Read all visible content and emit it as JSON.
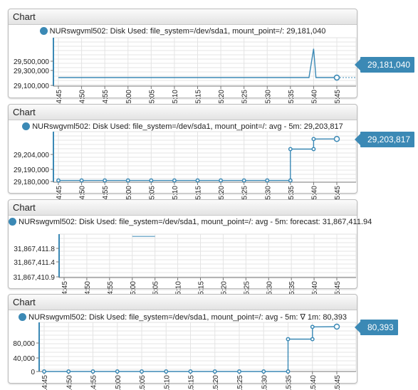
{
  "widgets": [
    {
      "title": "Chart",
      "legend": "NURswgvml502: Disk Used: file_system=/dev/sda1, mount_point=/: 29,181,040",
      "badge": "29,181,040",
      "y_ticks": [
        "29,500,000",
        "29,300,000",
        "29,100,000"
      ],
      "x_ticks": [
        "14:45",
        "14:50",
        "14:55",
        "15:00",
        "15:05",
        "15:10",
        "15:15",
        "15:20",
        "15:25",
        "15:30",
        "15:35",
        "15:40",
        "15:45"
      ]
    },
    {
      "title": "Chart",
      "legend": "NURswgvml502: Disk Used: file_system=/dev/sda1, mount_point=/: avg - 5m: 29,203,817",
      "badge": "29,203,817",
      "y_ticks": [
        "29,204,000",
        "29,190,000",
        "29,180,000"
      ],
      "x_ticks": [
        "14:45",
        "14:50",
        "14:55",
        "15:00",
        "15:05",
        "15:10",
        "15:15",
        "15:20",
        "15:25",
        "15:30",
        "15:35",
        "15:40",
        "15:45"
      ]
    },
    {
      "title": "Chart",
      "legend": "NURswgvml502: Disk Used: file_system=/dev/sda1, mount_point=/: avg - 5m: forecast: 31,867,411.94",
      "y_ticks": [
        "31,867,411.8",
        "31,867,411.4",
        "31,867,410.9"
      ],
      "x_ticks": [
        "14:45",
        "14:50",
        "14:55",
        "15:00",
        "15:05",
        "15:10",
        "15:15",
        "15:20",
        "15:25",
        "15:30",
        "15:35",
        "15:40",
        "15:45"
      ]
    },
    {
      "title": "Chart",
      "legend": "NURswgvml502: Disk Used: file_system=/dev/sda1, mount_point=/: avg - 5m: ∇ 1m: 80,393",
      "badge": "80,393",
      "y_ticks": [
        "80,000",
        "40,000",
        "0"
      ],
      "x_ticks": [
        "14:45",
        "14:50",
        "14:55",
        "15:00",
        "15:05",
        "15:10",
        "15:15",
        "15:20",
        "15:25",
        "15:30",
        "15:35",
        "15:40",
        "15:45"
      ]
    }
  ],
  "colors": {
    "series": "#3b89b5",
    "grid": "#e4e4e4",
    "axis": "#3b89b5",
    "forecast": "#6fa8c9"
  },
  "chart_data": [
    {
      "type": "line",
      "x": [
        "14:45",
        "14:50",
        "14:55",
        "15:00",
        "15:05",
        "15:10",
        "15:15",
        "15:20",
        "15:25",
        "15:30",
        "15:35",
        "15:40",
        "15:45"
      ],
      "series": [
        {
          "name": "NURswgvml502: Disk Used: file_system=/dev/sda1, mount_point=/",
          "points": [
            [
              "14:45",
              29181000
            ],
            [
              "15:39",
              29181000
            ],
            [
              "15:40",
              29455000
            ],
            [
              "15:40.5",
              29181000
            ],
            [
              "15:45",
              29181040
            ]
          ]
        }
      ],
      "ylim": [
        29100000,
        29560000
      ],
      "grid": true
    },
    {
      "type": "line",
      "x": [
        "14:45",
        "14:50",
        "14:55",
        "15:00",
        "15:05",
        "15:10",
        "15:15",
        "15:20",
        "15:25",
        "15:30",
        "15:35",
        "15:40",
        "15:45"
      ],
      "series": [
        {
          "name": "NURswgvml502: Disk Used: file_system=/dev/sda1, mount_point=/: avg - 5m",
          "step": true,
          "points": [
            [
              "14:45",
              29180000
            ],
            [
              "14:50",
              29180000
            ],
            [
              "14:55",
              29180000
            ],
            [
              "15:00",
              29180000
            ],
            [
              "15:05",
              29180000
            ],
            [
              "15:10",
              29180000
            ],
            [
              "15:15",
              29180000
            ],
            [
              "15:20",
              29180000
            ],
            [
              "15:25",
              29180000
            ],
            [
              "15:30",
              29180000
            ],
            [
              "15:35",
              29180000
            ],
            [
              "15:35",
              29198000
            ],
            [
              "15:40",
              29198000
            ],
            [
              "15:40",
              29203800
            ],
            [
              "15:45",
              29203817
            ]
          ]
        }
      ],
      "ylim": [
        29179000,
        29208000
      ],
      "grid": true
    },
    {
      "type": "line",
      "x": [
        "14:45",
        "14:50",
        "14:55",
        "15:00",
        "15:05",
        "15:10",
        "15:15",
        "15:20",
        "15:25",
        "15:30",
        "15:35",
        "15:40",
        "15:45"
      ],
      "series": [
        {
          "name": "NURswgvml502: Disk Used: file_system=/dev/sda1, mount_point=/: avg - 5m: forecast",
          "points": [
            [
              "15:00",
              31867411.94
            ],
            [
              "15:05",
              31867411.94
            ]
          ]
        }
      ],
      "ylim": [
        31867410.85,
        31867412.0
      ],
      "grid": true
    },
    {
      "type": "line",
      "x": [
        "14:45",
        "14:50",
        "14:55",
        "15:00",
        "15:05",
        "15:10",
        "15:15",
        "15:20",
        "15:25",
        "15:30",
        "15:35",
        "15:40",
        "15:45"
      ],
      "series": [
        {
          "name": "NURswgvml502: Disk Used: file_system=/dev/sda1, mount_point=/: avg - 5m: ∇ 1m",
          "step": true,
          "points": [
            [
              "14:45",
              0
            ],
            [
              "14:50",
              0
            ],
            [
              "14:55",
              0
            ],
            [
              "15:00",
              0
            ],
            [
              "15:05",
              0
            ],
            [
              "15:10",
              0
            ],
            [
              "15:15",
              0
            ],
            [
              "15:20",
              0
            ],
            [
              "15:25",
              0
            ],
            [
              "15:30",
              0
            ],
            [
              "15:35",
              0
            ],
            [
              "15:35",
              58000
            ],
            [
              "15:40",
              58000
            ],
            [
              "15:40",
              80000
            ],
            [
              "15:45",
              80393
            ]
          ]
        }
      ],
      "ylim": [
        0,
        88000
      ],
      "grid": true
    }
  ]
}
